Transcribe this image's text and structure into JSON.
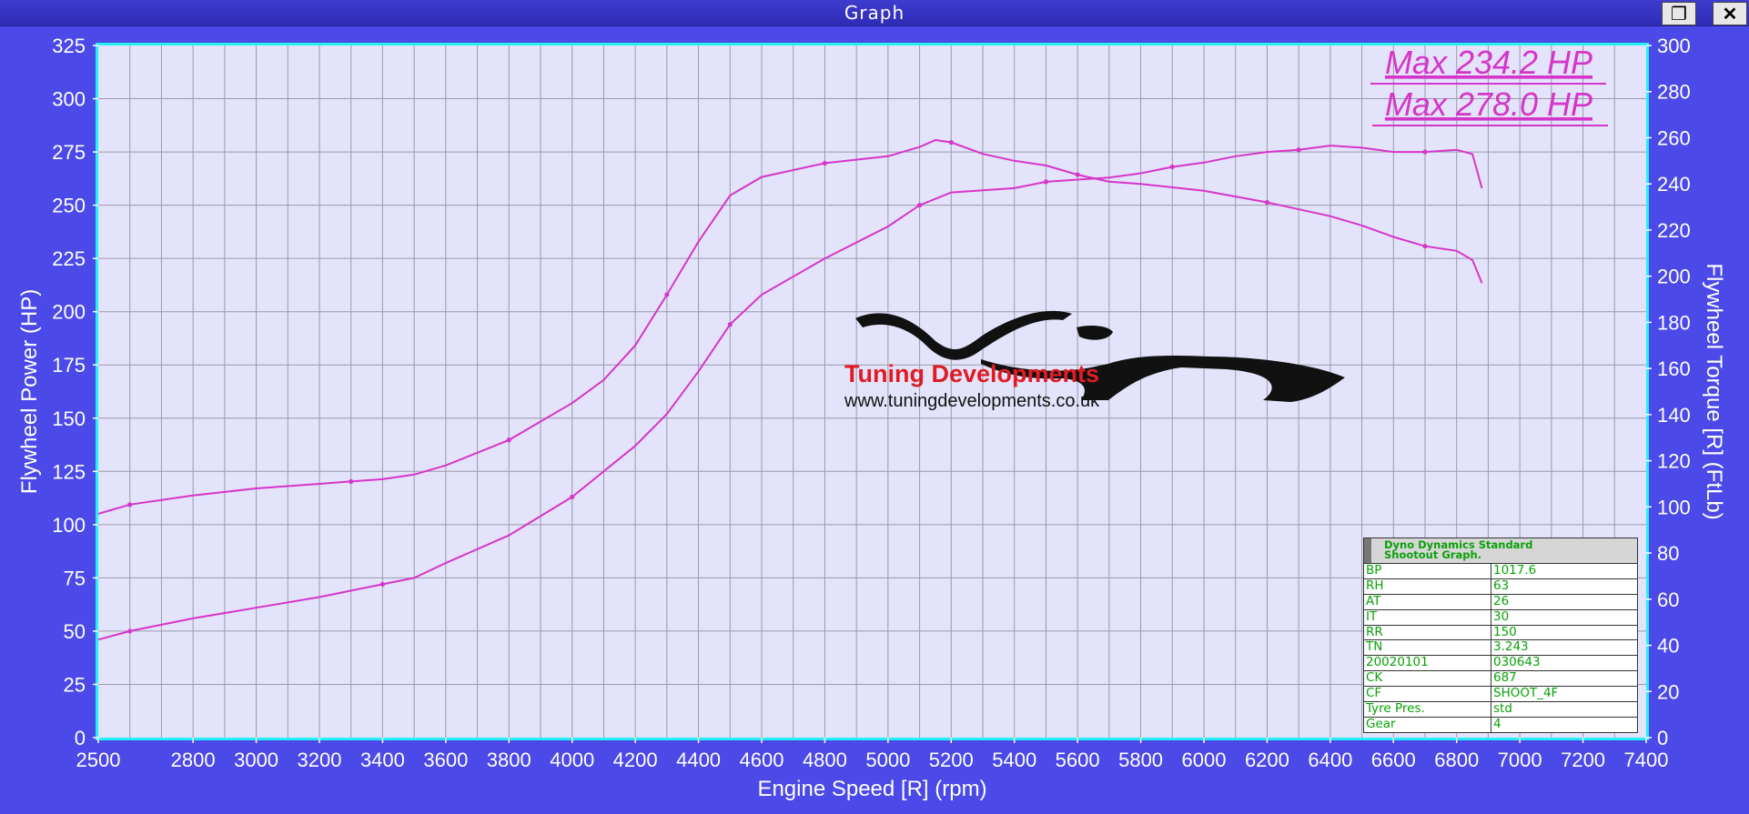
{
  "window": {
    "title": "Graph"
  },
  "colors": {
    "frame": "#4b49e8",
    "plot_bg": "#e3e3fb",
    "plot_border": "#24f0f8",
    "curve": "#d635c9",
    "grid": "#9a9aa8",
    "text": "#ffffff",
    "info_text": "#07a307"
  },
  "annotations": {
    "max1": "Max 234.2 HP",
    "max2": "Max 278.0 HP"
  },
  "logo": {
    "brand": "Tuning Developments",
    "url": "www.tuningdevelopments.co.uk"
  },
  "info": {
    "title_line1": "Dyno Dynamics Standard",
    "title_line2": "Shootout Graph.",
    "rows": [
      [
        "BP",
        "1017.6"
      ],
      [
        "RH",
        "63"
      ],
      [
        "AT",
        "26"
      ],
      [
        "IT",
        "30"
      ],
      [
        "RR",
        "150"
      ],
      [
        "TN",
        "3.243"
      ],
      [
        "20020101",
        "030643"
      ],
      [
        "CK",
        "687"
      ],
      [
        "CF",
        "SHOOT_4F"
      ],
      [
        "Tyre Pres.",
        "std"
      ],
      [
        "Gear",
        "4"
      ]
    ]
  },
  "chart_data": {
    "type": "line",
    "xlabel": "Engine Speed [R] (rpm)",
    "ylabel_left": "Flywheel Power (HP)",
    "ylabel_right": "Flywheel Torque [R] (FtLb)",
    "xlim": [
      2500,
      7400
    ],
    "ylim_left": [
      0,
      325
    ],
    "ylim_right": [
      0,
      300
    ],
    "x_ticks": [
      2500,
      2800,
      3000,
      3200,
      3400,
      3600,
      3800,
      4000,
      4200,
      4400,
      4600,
      4800,
      5000,
      5200,
      5400,
      5600,
      5800,
      6000,
      6200,
      6400,
      6600,
      6800,
      7000,
      7200,
      7400
    ],
    "y_ticks_left": [
      0,
      25,
      50,
      75,
      100,
      125,
      150,
      175,
      200,
      225,
      250,
      275,
      300,
      325
    ],
    "y_ticks_right": [
      0,
      20,
      40,
      60,
      80,
      100,
      120,
      140,
      160,
      180,
      200,
      220,
      240,
      260,
      280,
      300
    ],
    "grid": true,
    "series": [
      {
        "axis": "left",
        "points": [
          [
            2500,
            46
          ],
          [
            2600,
            50
          ],
          [
            2800,
            56
          ],
          [
            3000,
            61
          ],
          [
            3200,
            66
          ],
          [
            3400,
            72
          ],
          [
            3500,
            75
          ],
          [
            3600,
            82
          ],
          [
            3800,
            95
          ],
          [
            4000,
            113
          ],
          [
            4200,
            137
          ],
          [
            4300,
            152
          ],
          [
            4400,
            172
          ],
          [
            4500,
            194
          ],
          [
            4600,
            208
          ],
          [
            4800,
            225
          ],
          [
            5000,
            240
          ],
          [
            5100,
            250
          ],
          [
            5200,
            256
          ],
          [
            5300,
            257
          ],
          [
            5400,
            258
          ],
          [
            5500,
            261
          ],
          [
            5600,
            262
          ],
          [
            5700,
            263
          ],
          [
            5800,
            265
          ],
          [
            5900,
            268
          ],
          [
            6000,
            270
          ],
          [
            6100,
            273
          ],
          [
            6200,
            275
          ],
          [
            6300,
            276
          ],
          [
            6400,
            278
          ],
          [
            6500,
            277
          ],
          [
            6600,
            275
          ],
          [
            6700,
            275
          ],
          [
            6800,
            276
          ],
          [
            6850,
            274
          ],
          [
            6880,
            258
          ]
        ]
      },
      {
        "axis": "right",
        "points": [
          [
            2500,
            97
          ],
          [
            2600,
            101
          ],
          [
            2800,
            105
          ],
          [
            3000,
            108
          ],
          [
            3200,
            110
          ],
          [
            3300,
            111
          ],
          [
            3400,
            112
          ],
          [
            3500,
            114
          ],
          [
            3600,
            118
          ],
          [
            3800,
            129
          ],
          [
            4000,
            145
          ],
          [
            4100,
            155
          ],
          [
            4200,
            170
          ],
          [
            4300,
            192
          ],
          [
            4400,
            215
          ],
          [
            4500,
            235
          ],
          [
            4600,
            243
          ],
          [
            4800,
            249
          ],
          [
            5000,
            252
          ],
          [
            5100,
            256
          ],
          [
            5150,
            259
          ],
          [
            5200,
            258
          ],
          [
            5300,
            253
          ],
          [
            5400,
            250
          ],
          [
            5500,
            248
          ],
          [
            5600,
            244
          ],
          [
            5700,
            241
          ],
          [
            5800,
            240
          ],
          [
            6000,
            237
          ],
          [
            6200,
            232
          ],
          [
            6400,
            226
          ],
          [
            6500,
            222
          ],
          [
            6600,
            217
          ],
          [
            6700,
            213
          ],
          [
            6800,
            211
          ],
          [
            6850,
            207
          ],
          [
            6880,
            197
          ]
        ]
      }
    ]
  }
}
